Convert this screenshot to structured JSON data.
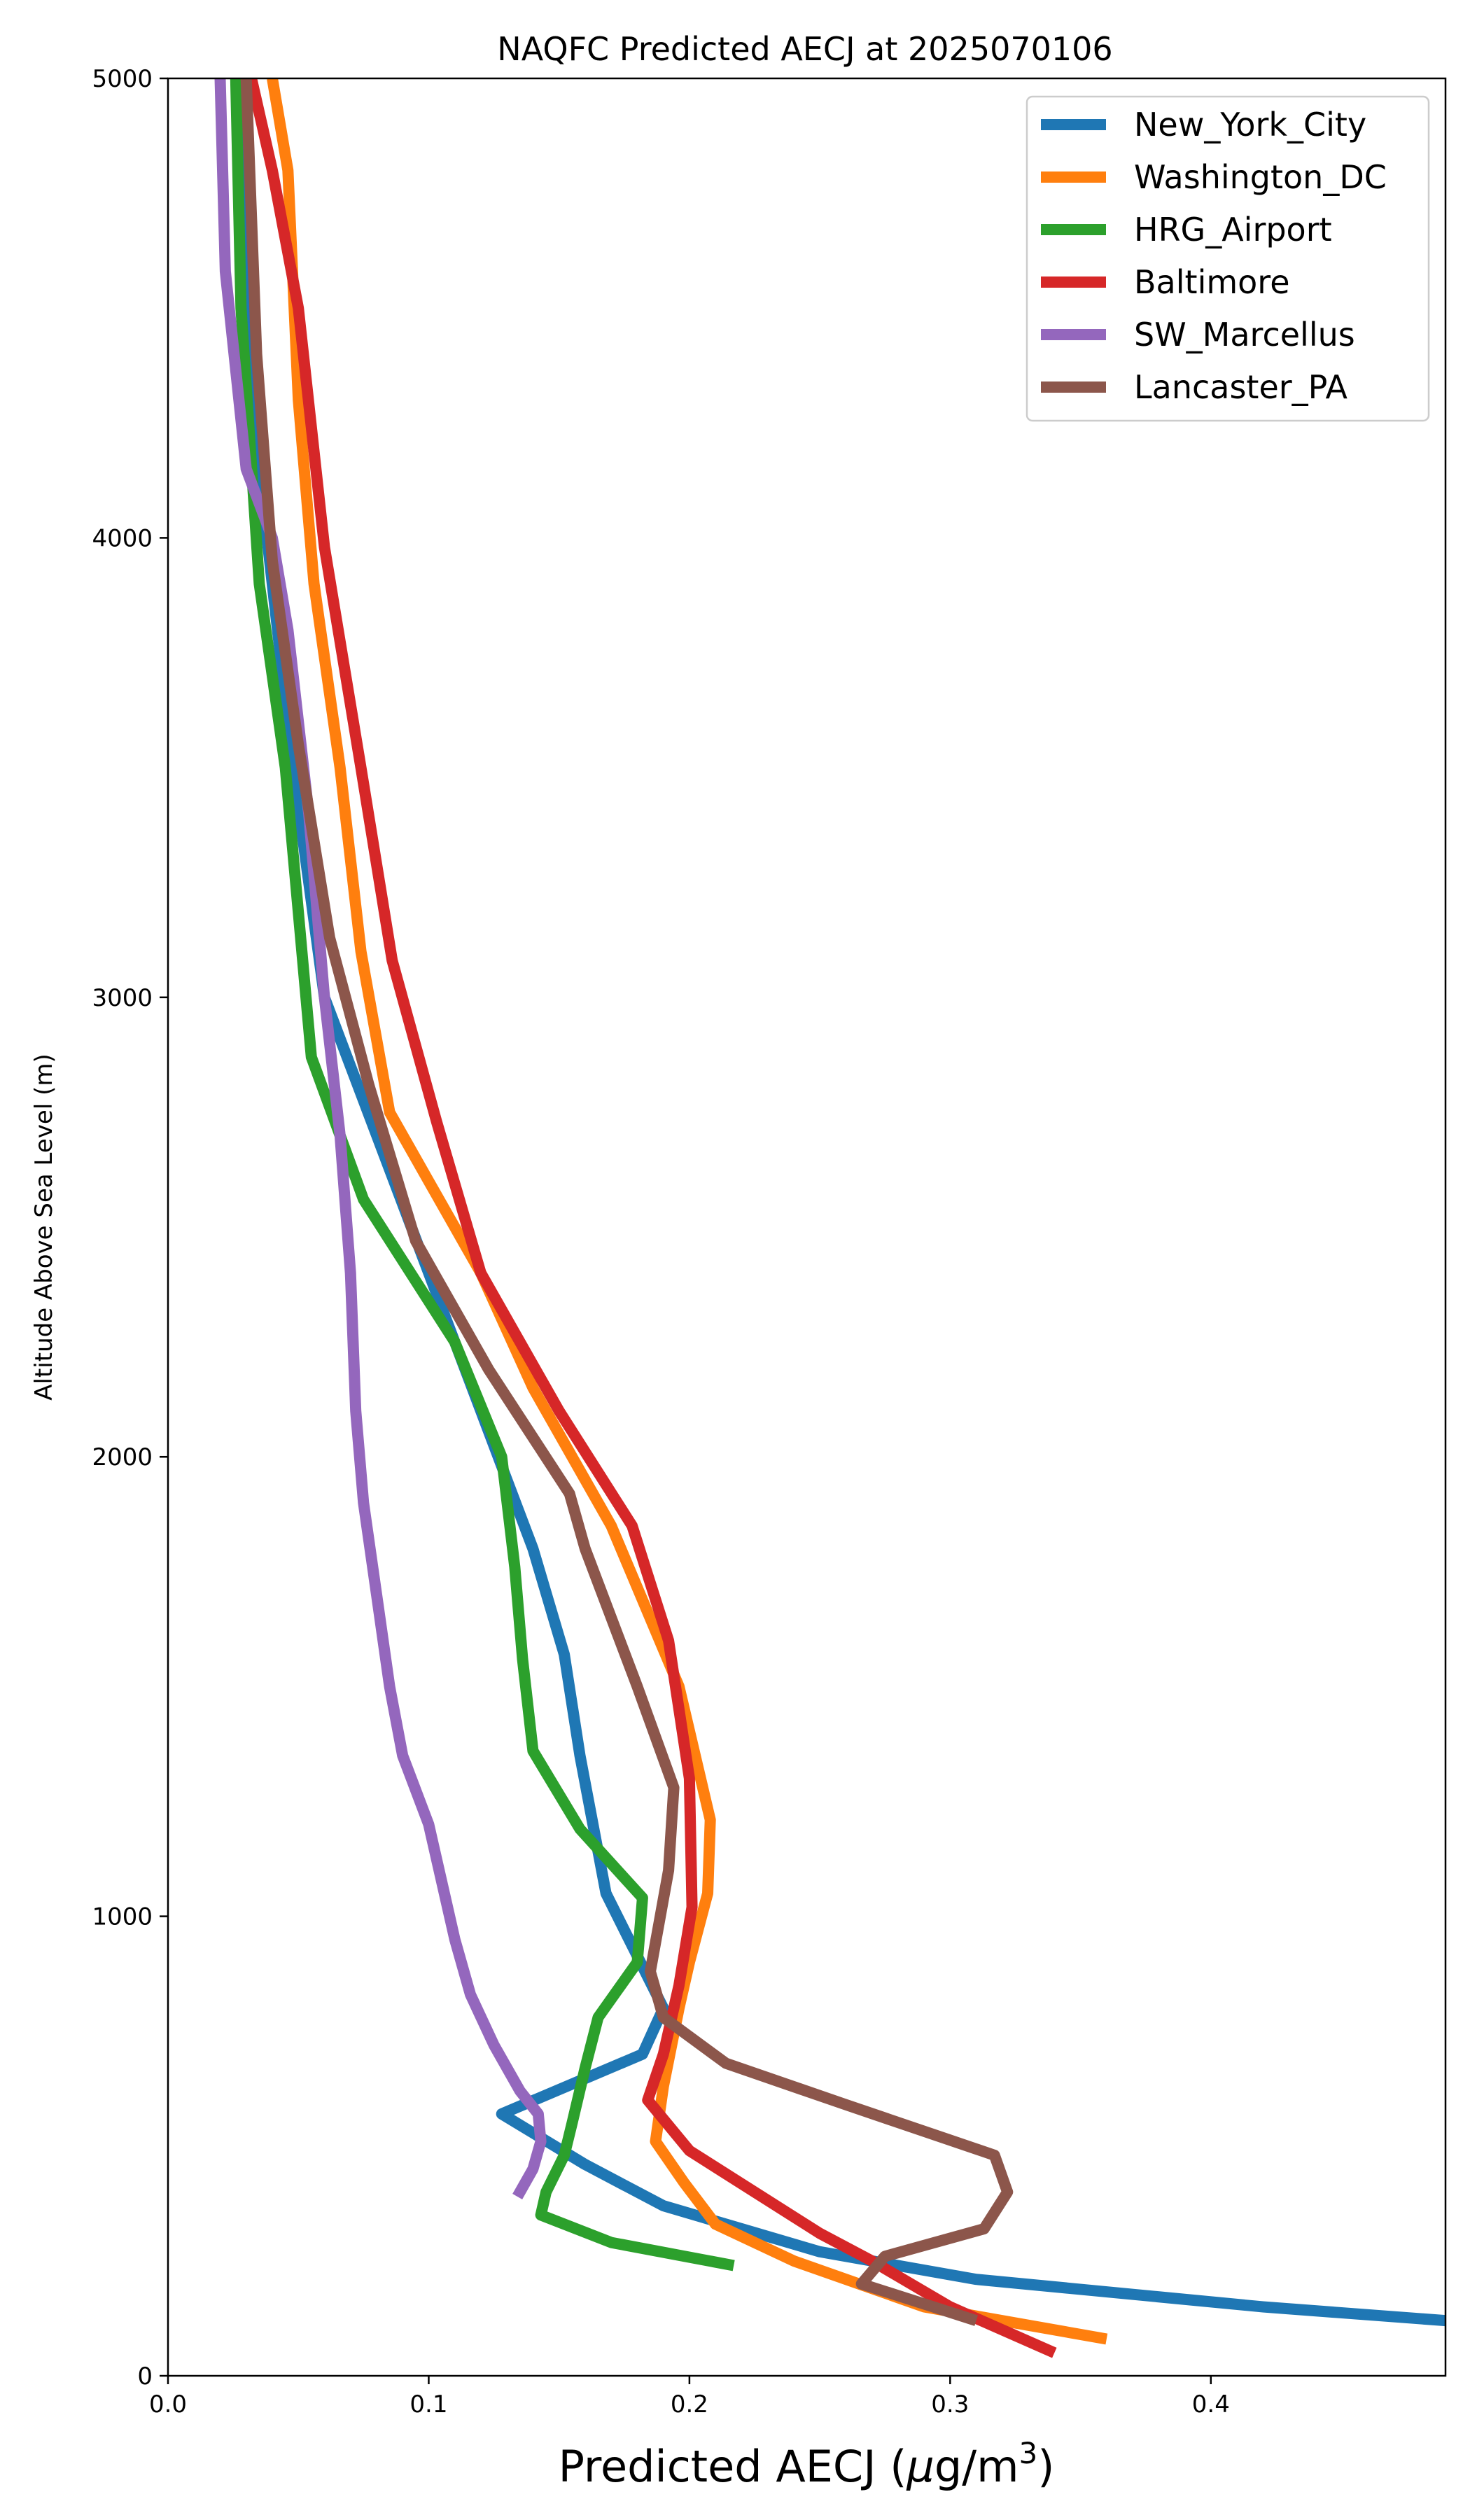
{
  "chart_data": {
    "type": "line",
    "title": "NAQFC Predicted AECJ at 2025070106",
    "xlabel_text": "Predicted AECJ (",
    "xlabel_unit_mu": "μ",
    "xlabel_unit_rest": "g/m",
    "xlabel_sup": "3",
    "xlabel_close": ")",
    "ylabel": "Altitude Above Sea Level (m)",
    "xlim": [
      0.0,
      0.49
    ],
    "ylim": [
      0,
      5000
    ],
    "x_ticks": [
      {
        "v": 0.0,
        "label": "0.0"
      },
      {
        "v": 0.1,
        "label": "0.1"
      },
      {
        "v": 0.2,
        "label": "0.2"
      },
      {
        "v": 0.3,
        "label": "0.3"
      },
      {
        "v": 0.4,
        "label": "0.4"
      }
    ],
    "y_ticks": [
      {
        "v": 0,
        "label": "0"
      },
      {
        "v": 1000,
        "label": "1000"
      },
      {
        "v": 2000,
        "label": "2000"
      },
      {
        "v": 3000,
        "label": "3000"
      },
      {
        "v": 4000,
        "label": "4000"
      },
      {
        "v": 5000,
        "label": "5000"
      }
    ],
    "grid": false,
    "legend_position": "top-right",
    "series": [
      {
        "name": "New_York_City",
        "color": "#1f77b4",
        "points": [
          [
            0.49,
            120
          ],
          [
            0.42,
            150
          ],
          [
            0.31,
            210
          ],
          [
            0.25,
            270
          ],
          [
            0.19,
            370
          ],
          [
            0.16,
            460
          ],
          [
            0.128,
            570
          ],
          [
            0.182,
            700
          ],
          [
            0.19,
            800
          ],
          [
            0.168,
            1050
          ],
          [
            0.158,
            1350
          ],
          [
            0.152,
            1570
          ],
          [
            0.14,
            1800
          ],
          [
            0.12,
            2100
          ],
          [
            0.1,
            2400
          ],
          [
            0.08,
            2700
          ],
          [
            0.06,
            3000
          ],
          [
            0.048,
            3500
          ],
          [
            0.038,
            4000
          ],
          [
            0.032,
            4500
          ],
          [
            0.03,
            5000
          ]
        ]
      },
      {
        "name": "Washington_DC",
        "color": "#ff7f0e",
        "points": [
          [
            0.36,
            80
          ],
          [
            0.29,
            150
          ],
          [
            0.24,
            250
          ],
          [
            0.21,
            330
          ],
          [
            0.198,
            420
          ],
          [
            0.187,
            510
          ],
          [
            0.19,
            630
          ],
          [
            0.196,
            800
          ],
          [
            0.2,
            900
          ],
          [
            0.207,
            1050
          ],
          [
            0.208,
            1210
          ],
          [
            0.196,
            1500
          ],
          [
            0.17,
            1850
          ],
          [
            0.14,
            2150
          ],
          [
            0.12,
            2400
          ],
          [
            0.1,
            2600
          ],
          [
            0.085,
            2750
          ],
          [
            0.074,
            3100
          ],
          [
            0.066,
            3500
          ],
          [
            0.056,
            3900
          ],
          [
            0.05,
            4300
          ],
          [
            0.046,
            4800
          ],
          [
            0.04,
            5000
          ]
        ]
      },
      {
        "name": "HRG_Airport",
        "color": "#2ca02c",
        "points": [
          [
            0.217,
            240
          ],
          [
            0.17,
            290
          ],
          [
            0.143,
            350
          ],
          [
            0.145,
            400
          ],
          [
            0.152,
            480
          ],
          [
            0.155,
            550
          ],
          [
            0.16,
            670
          ],
          [
            0.165,
            780
          ],
          [
            0.18,
            900
          ],
          [
            0.182,
            1040
          ],
          [
            0.158,
            1190
          ],
          [
            0.14,
            1360
          ],
          [
            0.136,
            1560
          ],
          [
            0.133,
            1760
          ],
          [
            0.128,
            2000
          ],
          [
            0.11,
            2250
          ],
          [
            0.075,
            2560
          ],
          [
            0.055,
            2870
          ],
          [
            0.045,
            3500
          ],
          [
            0.035,
            3900
          ],
          [
            0.028,
            4500
          ],
          [
            0.026,
            5000
          ]
        ]
      },
      {
        "name": "Baltimore",
        "color": "#d62728",
        "points": [
          [
            0.34,
            50
          ],
          [
            0.3,
            150
          ],
          [
            0.27,
            250
          ],
          [
            0.25,
            310
          ],
          [
            0.2,
            490
          ],
          [
            0.184,
            600
          ],
          [
            0.19,
            700
          ],
          [
            0.196,
            850
          ],
          [
            0.201,
            1020
          ],
          [
            0.2,
            1300
          ],
          [
            0.192,
            1600
          ],
          [
            0.178,
            1850
          ],
          [
            0.15,
            2100
          ],
          [
            0.12,
            2400
          ],
          [
            0.103,
            2730
          ],
          [
            0.086,
            3080
          ],
          [
            0.074,
            3500
          ],
          [
            0.06,
            3980
          ],
          [
            0.05,
            4500
          ],
          [
            0.04,
            4800
          ],
          [
            0.032,
            5000
          ]
        ]
      },
      {
        "name": "SW_Marcellus",
        "color": "#9467bd",
        "points": [
          [
            0.134,
            390
          ],
          [
            0.14,
            450
          ],
          [
            0.143,
            510
          ],
          [
            0.142,
            570
          ],
          [
            0.135,
            620
          ],
          [
            0.125,
            720
          ],
          [
            0.116,
            830
          ],
          [
            0.11,
            950
          ],
          [
            0.106,
            1050
          ],
          [
            0.1,
            1200
          ],
          [
            0.09,
            1350
          ],
          [
            0.085,
            1500
          ],
          [
            0.08,
            1700
          ],
          [
            0.075,
            1900
          ],
          [
            0.072,
            2100
          ],
          [
            0.07,
            2400
          ],
          [
            0.066,
            2700
          ],
          [
            0.06,
            3000
          ],
          [
            0.054,
            3400
          ],
          [
            0.046,
            3800
          ],
          [
            0.04,
            4000
          ],
          [
            0.03,
            4150
          ],
          [
            0.022,
            4580
          ],
          [
            0.02,
            5000
          ]
        ]
      },
      {
        "name": "Lancaster_PA",
        "color": "#8c564b",
        "points": [
          [
            0.31,
            120
          ],
          [
            0.266,
            200
          ],
          [
            0.275,
            260
          ],
          [
            0.313,
            320
          ],
          [
            0.322,
            400
          ],
          [
            0.317,
            480
          ],
          [
            0.26,
            590
          ],
          [
            0.214,
            680
          ],
          [
            0.19,
            780
          ],
          [
            0.185,
            880
          ],
          [
            0.192,
            1100
          ],
          [
            0.194,
            1280
          ],
          [
            0.18,
            1500
          ],
          [
            0.16,
            1800
          ],
          [
            0.154,
            1920
          ],
          [
            0.123,
            2190
          ],
          [
            0.095,
            2470
          ],
          [
            0.077,
            2810
          ],
          [
            0.062,
            3130
          ],
          [
            0.05,
            3550
          ],
          [
            0.04,
            3950
          ],
          [
            0.034,
            4400
          ],
          [
            0.03,
            5000
          ]
        ]
      }
    ]
  }
}
